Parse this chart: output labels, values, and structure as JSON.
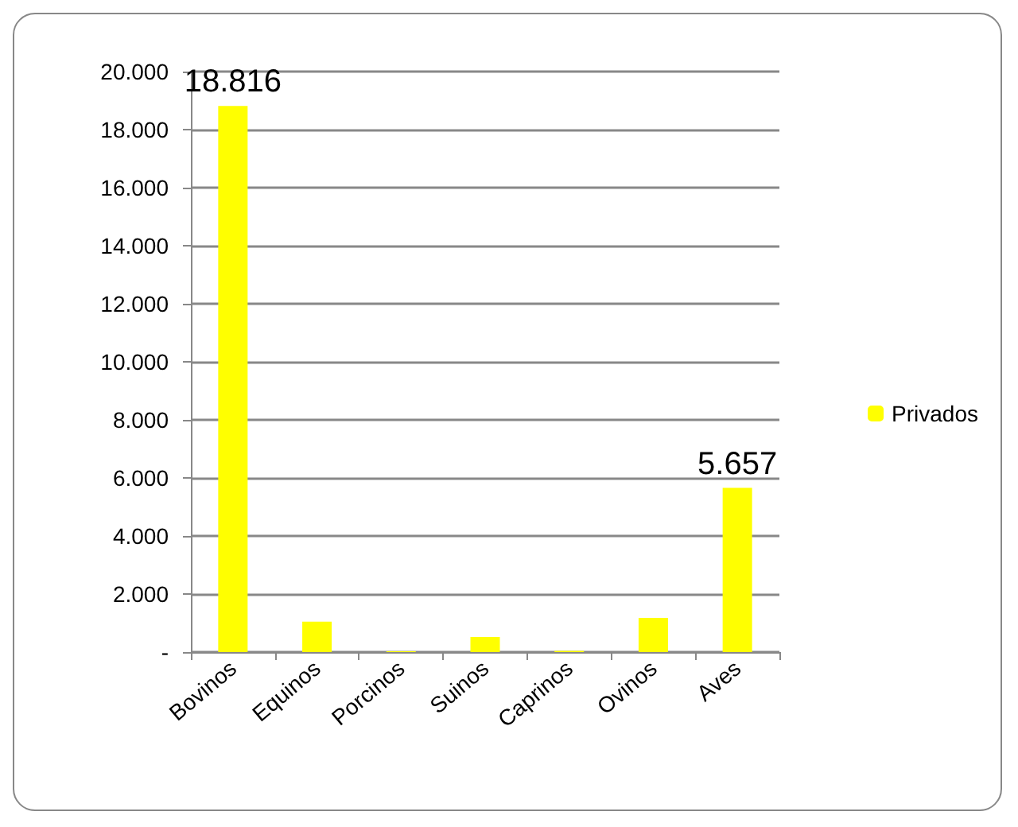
{
  "chart_data": {
    "type": "bar",
    "categories": [
      "Bovinos",
      "Equinos",
      "Porcinos",
      "Suinos",
      "Caprinos",
      "Ovinos",
      "Aves"
    ],
    "series": [
      {
        "name": "Privados",
        "color": "#ffff00",
        "values": [
          18816,
          1050,
          30,
          520,
          40,
          1180,
          5657
        ],
        "value_labels": [
          "18.816",
          null,
          null,
          null,
          null,
          null,
          "5.657"
        ]
      }
    ],
    "ylim": [
      0,
      20000
    ],
    "yticks": [
      {
        "value": 0,
        "label": "-"
      },
      {
        "value": 2000,
        "label": "2.000"
      },
      {
        "value": 4000,
        "label": "4.000"
      },
      {
        "value": 6000,
        "label": "6.000"
      },
      {
        "value": 8000,
        "label": "8.000"
      },
      {
        "value": 10000,
        "label": "10.000"
      },
      {
        "value": 12000,
        "label": "12.000"
      },
      {
        "value": 14000,
        "label": "14.000"
      },
      {
        "value": 16000,
        "label": "16.000"
      },
      {
        "value": 18000,
        "label": "18.000"
      },
      {
        "value": 20000,
        "label": "20.000"
      }
    ],
    "grid": true,
    "legend": "right"
  }
}
